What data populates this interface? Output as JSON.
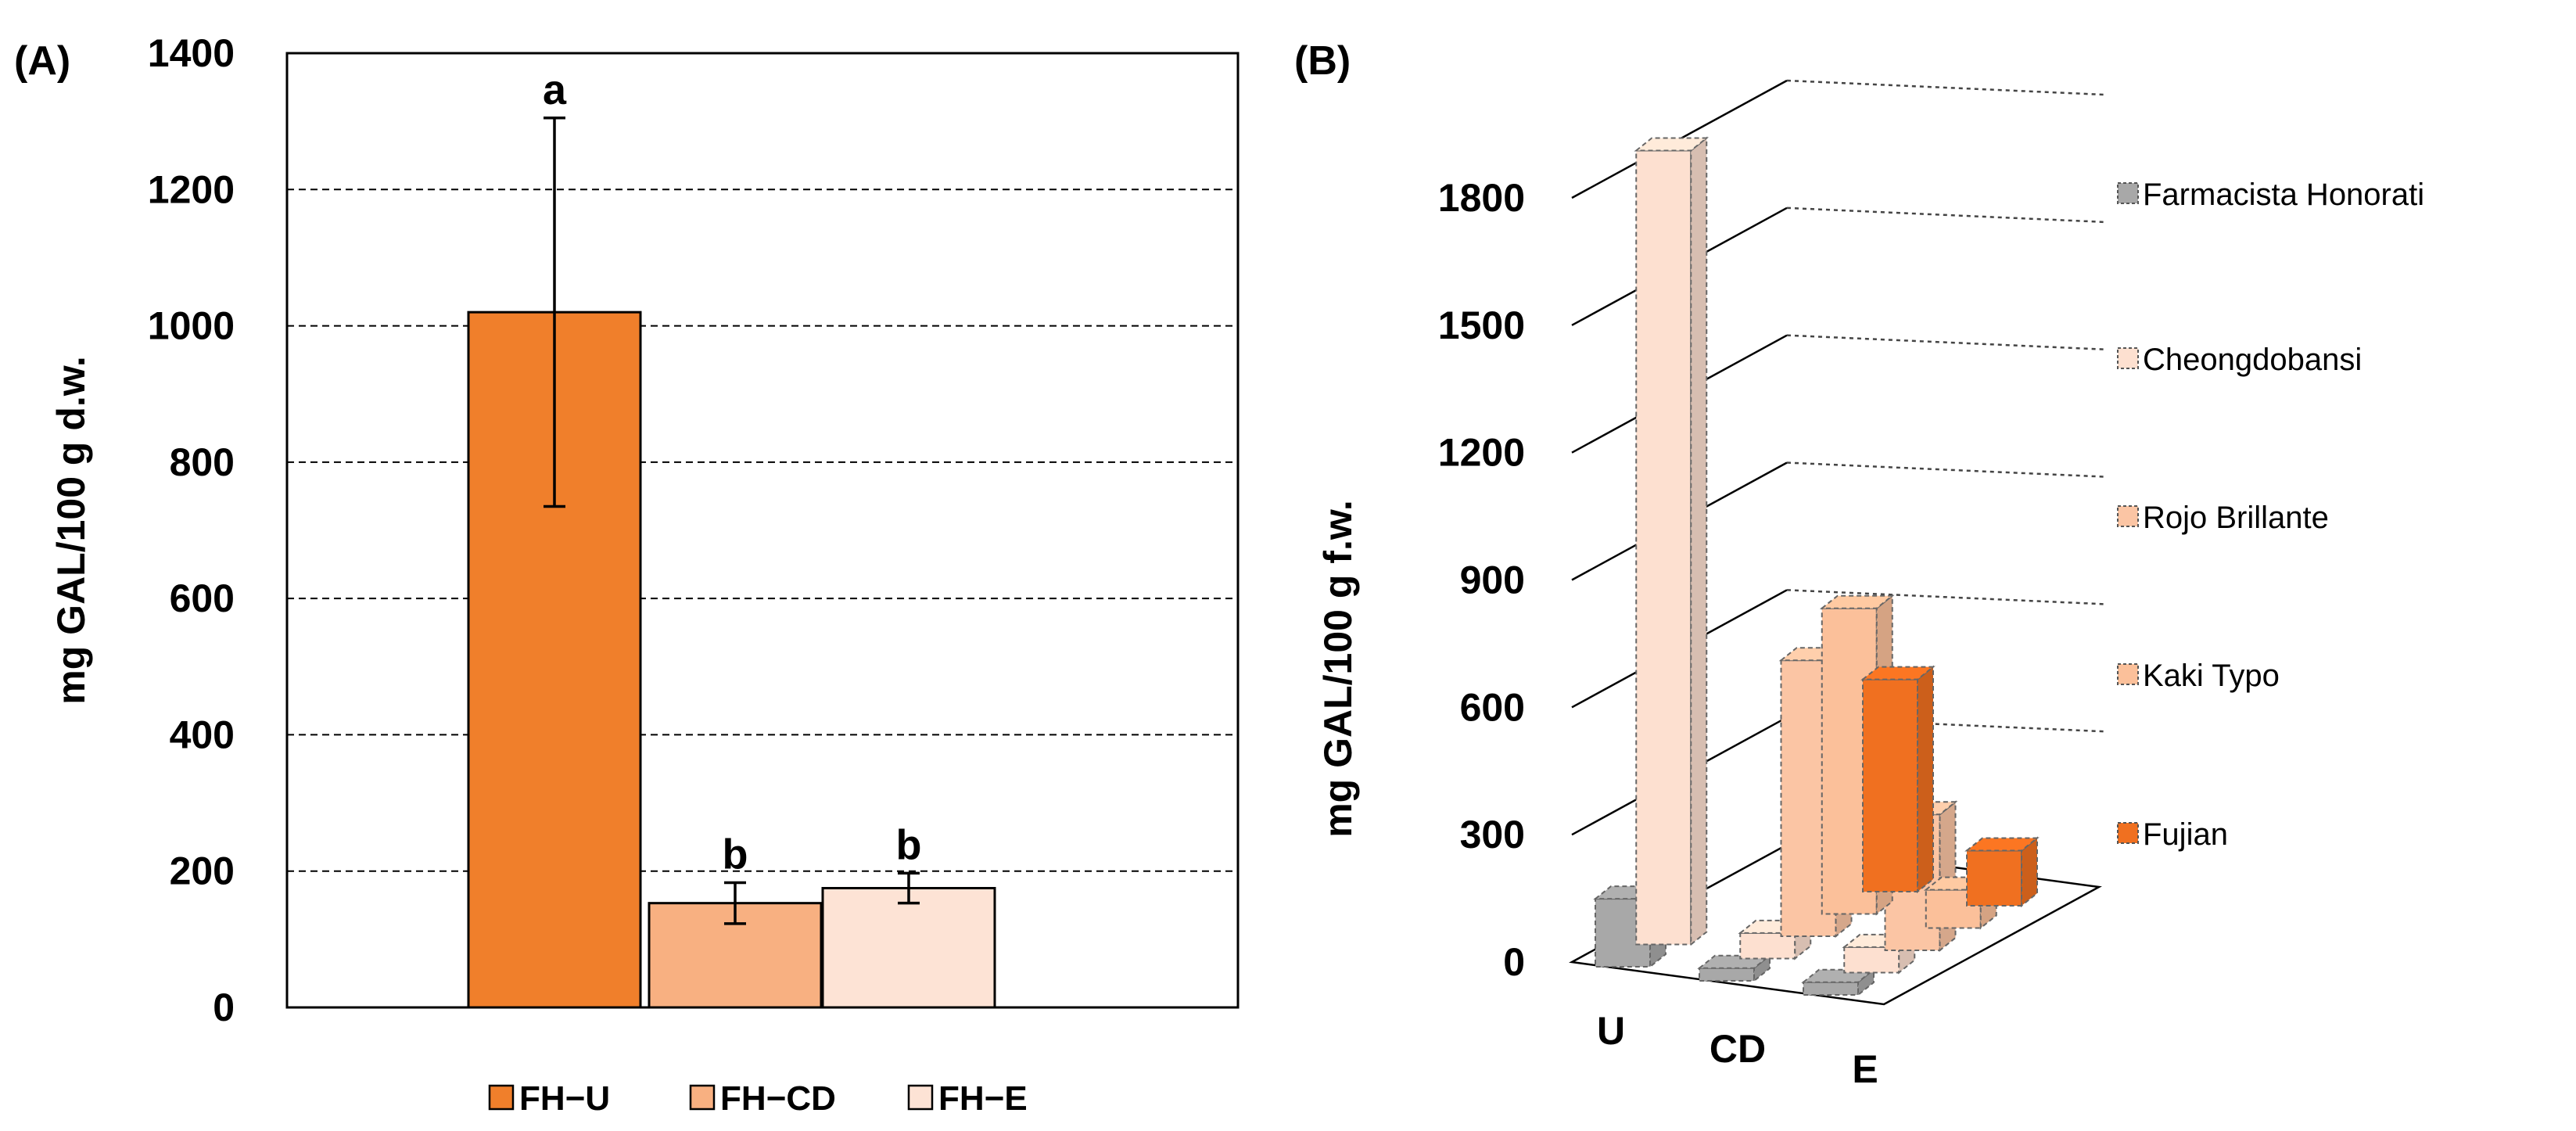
{
  "chart_data": [
    {
      "panel_label": "(A)",
      "type": "bar",
      "ylabel": "mg GAL/100 g d.w.",
      "ylim": [
        0,
        1400
      ],
      "yticks": [
        "0",
        "200",
        "400",
        "600",
        "800",
        "1000",
        "1200",
        "1400"
      ],
      "ytick_values": [
        0,
        200,
        400,
        600,
        800,
        1000,
        1200,
        1400
      ],
      "grid": true,
      "categories": [
        "FH−U",
        "FH−CD",
        "FH−E"
      ],
      "values": [
        1020,
        153,
        175
      ],
      "errors": [
        285,
        30,
        22
      ],
      "letters": [
        "a",
        "b",
        "b"
      ],
      "colors": [
        "#f07f2b",
        "#f8b081",
        "#fde3d5"
      ],
      "legend": [
        "FH−U",
        "FH−CD",
        "FH−E"
      ],
      "legend_position": "bottom"
    },
    {
      "panel_label": "(B)",
      "type": "bar",
      "variant": "3d",
      "ylabel": "mg GAL/100 g f.w.",
      "ylim": [
        0,
        1800
      ],
      "yticks": [
        "0",
        "300",
        "600",
        "900",
        "1200",
        "1500",
        "1800"
      ],
      "ytick_values": [
        0,
        300,
        600,
        900,
        1200,
        1500,
        1800
      ],
      "categories": [
        "U",
        "CD",
        "E"
      ],
      "series": [
        {
          "name": "Fujian",
          "color": "#f07020",
          "values": [
            null,
            500,
            130
          ]
        },
        {
          "name": "Kaki Typo",
          "color": "#fbc09a",
          "values": [
            null,
            720,
            90
          ]
        },
        {
          "name": "Rojo Brillante",
          "color": "#fbc5a4",
          "values": [
            null,
            650,
            320
          ]
        },
        {
          "name": "Cheongdobansi",
          "color": "#fde0d0",
          "values": [
            1870,
            60,
            60
          ]
        },
        {
          "name": "Farmacista Honorati",
          "color": "#a8a8a8",
          "values": [
            160,
            30,
            30
          ]
        }
      ],
      "legend": [
        "Farmacista Honorati",
        "Cheongdobansi",
        "Rojo Brillante",
        "Kaki Typo",
        "Fujian"
      ],
      "legend_position": "right"
    }
  ]
}
